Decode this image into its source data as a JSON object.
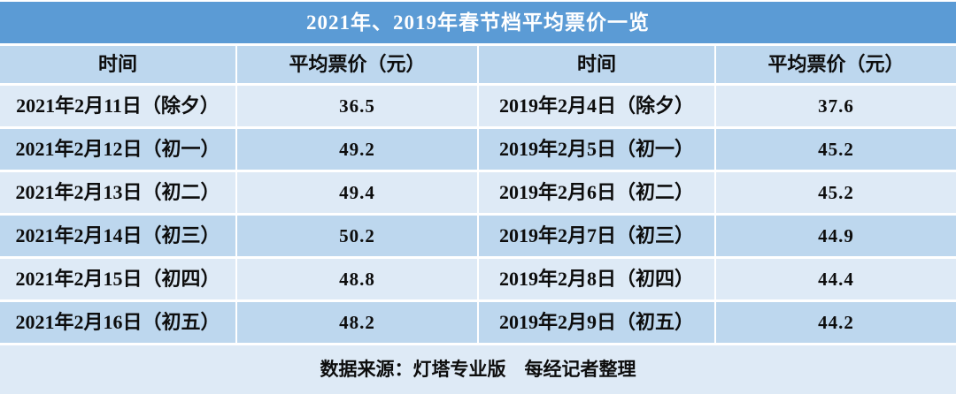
{
  "title": "2021年、2019年春节档平均票价一览",
  "table": {
    "headers": [
      "时间",
      "平均票价（元）",
      "时间",
      "平均票价（元）"
    ],
    "rows": [
      {
        "date_2021": "2021年2月11日（除夕）",
        "price_2021": "36.5",
        "date_2019": "2019年2月4日（除夕）",
        "price_2019": "37.6"
      },
      {
        "date_2021": "2021年2月12日（初一）",
        "price_2021": "49.2",
        "date_2019": "2019年2月5日（初一）",
        "price_2019": "45.2"
      },
      {
        "date_2021": "2021年2月13日（初二）",
        "price_2021": "49.4",
        "date_2019": "2019年2月6日（初二）",
        "price_2019": "45.2"
      },
      {
        "date_2021": "2021年2月14日（初三）",
        "price_2021": "50.2",
        "date_2019": "2019年2月7日（初三）",
        "price_2019": "44.9"
      },
      {
        "date_2021": "2021年2月15日（初四）",
        "price_2021": "48.8",
        "date_2019": "2019年2月8日（初四）",
        "price_2019": "44.4"
      },
      {
        "date_2021": "2021年2月16日（初五）",
        "price_2021": "48.2",
        "date_2019": "2019年2月9日（初五）",
        "price_2019": "44.2"
      }
    ]
  },
  "footer": {
    "text": "数据来源：灯塔专业版　每经记者整理"
  },
  "colors": {
    "title_bg": "#5B9BD5",
    "title_text": "#FFFFFF",
    "band_dark": "#BDD7EE",
    "band_light": "#DEEAF6",
    "grid_line": "#FFFFFF",
    "body_text": "#0D0D0D"
  },
  "chart_data": {
    "type": "table",
    "title": "2021年、2019年春节档平均票价一览",
    "columns": [
      "时间",
      "平均票价（元）",
      "时间",
      "平均票价（元）"
    ],
    "categories": [
      "除夕",
      "初一",
      "初二",
      "初三",
      "初四",
      "初五"
    ],
    "series": [
      {
        "name": "2021年春节档",
        "dates": [
          "2021年2月11日",
          "2021年2月12日",
          "2021年2月13日",
          "2021年2月14日",
          "2021年2月15日",
          "2021年2月16日"
        ],
        "values": [
          36.5,
          49.2,
          49.4,
          50.2,
          48.8,
          48.2
        ]
      },
      {
        "name": "2019年春节档",
        "dates": [
          "2019年2月4日",
          "2019年2月5日",
          "2019年2月6日",
          "2019年2月7日",
          "2019年2月8日",
          "2019年2月9日"
        ],
        "values": [
          37.6,
          45.2,
          45.2,
          44.9,
          44.4,
          44.2
        ]
      }
    ],
    "unit": "元",
    "source": "数据来源：灯塔专业版　每经记者整理"
  }
}
